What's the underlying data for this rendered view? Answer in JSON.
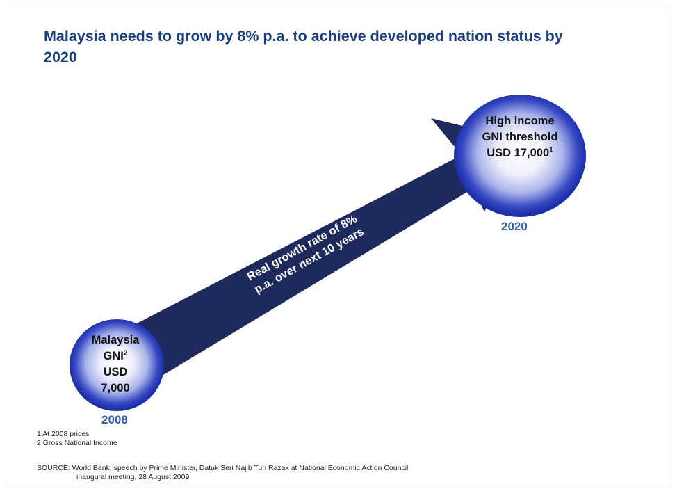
{
  "title": "Malaysia needs to grow by 8% p.a. to achieve developed nation status by 2020",
  "target": {
    "line1": "High income",
    "line2": "GNI threshold",
    "line3": "USD 17,000",
    "sup": "1",
    "year": "2020"
  },
  "origin": {
    "line1": "Malaysia",
    "line2": "GNI",
    "sup": "2",
    "line3": "USD",
    "line4": "7,000",
    "year": "2008"
  },
  "arrow": {
    "line1": "Real growth rate of 8%",
    "line2": "p.a. over next 10 years"
  },
  "footnotes": {
    "note1": "1 At 2008 prices",
    "note2": "2 Gross National Income"
  },
  "source": {
    "line1": "SOURCE: World Bank; speech by Prime Minister, Datuk Seri Najib Tun Razak at National Economic Action Council",
    "line2": "inaugural meeting, 28 August 2009"
  },
  "colors": {
    "title": "#1a3f7a",
    "arrow": "#1f2a5c",
    "circle_edge": "#1c2fa8",
    "year": "#2e5fa3"
  }
}
